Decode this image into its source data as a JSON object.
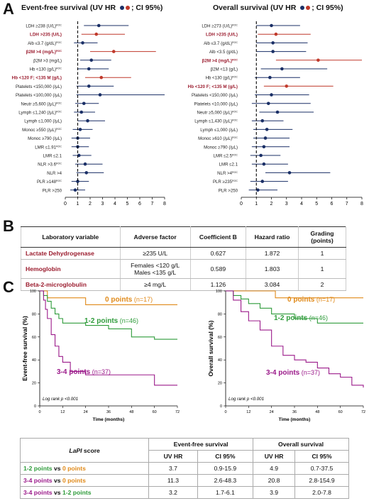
{
  "panels": {
    "a": "A",
    "b": "B",
    "c": "C"
  },
  "forest_left": {
    "title": "Event-free survival (UV HR ",
    "title_tail": "; CI 95%)",
    "axis_ticks": [
      "0",
      "1",
      "2",
      "3",
      "4",
      "5",
      "6",
      "7",
      "8"
    ]
  },
  "forest_right": {
    "title": "Overall survival (UV HR ",
    "title_tail": "; CI 95%)",
    "axis_ticks": [
      "0",
      "1",
      "2",
      "3",
      "4",
      "5",
      "6",
      "7",
      "8"
    ]
  },
  "chart_data": [
    {
      "type": "scatter",
      "subtype": "forest",
      "title": "Event-free survival (UV HR; CI 95%)",
      "xlim": [
        0,
        8
      ],
      "reference_line": 1,
      "rows": [
        {
          "label": "LDH ≥238 (U/L)ROC",
          "hr": 2.7,
          "lo": 1.5,
          "hi": 5.1,
          "highlight": false
        },
        {
          "label": "LDH >235 (U/L)",
          "hr": 2.5,
          "lo": 1.3,
          "hi": 4.8,
          "highlight": true
        },
        {
          "label": "Alb ≤3.7 (g/dL)ROC",
          "hr": 1.4,
          "lo": 0.7,
          "hi": 2.6,
          "highlight": false
        },
        {
          "label": "β2M >4 (mg/L)ROC",
          "hr": 3.9,
          "lo": 2.0,
          "hi": 7.3,
          "highlight": true
        },
        {
          "label": "β2M >3 (mg/L)",
          "hr": 2.1,
          "lo": 1.2,
          "hi": 3.7,
          "highlight": false
        },
        {
          "label": "Hb <130 (g/L)ROC",
          "hr": 1.9,
          "lo": 1.0,
          "hi": 3.5,
          "highlight": false
        },
        {
          "label": "Hb <120 F; <135 M (g/L)",
          "hr": 2.9,
          "lo": 1.6,
          "hi": 5.3,
          "highlight": true
        },
        {
          "label": "Platelets <150,000 (/μL)",
          "hr": 1.9,
          "lo": 0.9,
          "hi": 3.9,
          "highlight": false
        },
        {
          "label": "Platelets <100,000 (/μL)",
          "hr": 2.8,
          "lo": 0.9,
          "hi": 8.0,
          "highlight": false
        },
        {
          "label": "Neutr ≥5,600 (/μL)ROC",
          "hr": 1.5,
          "lo": 0.8,
          "hi": 2.7,
          "highlight": false
        },
        {
          "label": "Lymph ≤1,240 (/μL)ROC",
          "hr": 1.3,
          "lo": 0.7,
          "hi": 2.4,
          "highlight": false
        },
        {
          "label": "Lymph ≤1,000 (/μL)",
          "hr": 1.8,
          "lo": 1.0,
          "hi": 3.2,
          "highlight": false
        },
        {
          "label": "Monoc ≥550 (/μL)ROC",
          "hr": 1.2,
          "lo": 0.6,
          "hi": 2.2,
          "highlight": false
        },
        {
          "label": "Monoc ≥790 (/μL)",
          "hr": 1.0,
          "lo": 0.5,
          "hi": 2.0,
          "highlight": false
        },
        {
          "label": "LMR ≤1.91ROC",
          "hr": 1.0,
          "lo": 0.5,
          "hi": 1.9,
          "highlight": false
        },
        {
          "label": "LMR ≤2.1",
          "hr": 1.1,
          "lo": 0.6,
          "hi": 2.1,
          "highlight": false
        },
        {
          "label": "NLR >3.6ROC",
          "hr": 1.6,
          "lo": 0.8,
          "hi": 3.0,
          "highlight": false
        },
        {
          "label": "NLR >4",
          "hr": 1.7,
          "lo": 0.9,
          "hi": 3.1,
          "highlight": false
        },
        {
          "label": "PLR ≥148ROC",
          "hr": 1.0,
          "lo": 0.5,
          "hi": 1.9,
          "highlight": false
        },
        {
          "label": "PLR >250",
          "hr": 0.8,
          "lo": 0.4,
          "hi": 1.6,
          "highlight": false
        }
      ]
    },
    {
      "type": "scatter",
      "subtype": "forest",
      "title": "Overall survival (UV HR; CI 95%)",
      "xlim": [
        0,
        8
      ],
      "reference_line": 1,
      "rows": [
        {
          "label": "LDH ≥273 (U/L)ROC",
          "hr": 2.0,
          "lo": 1.0,
          "hi": 3.9,
          "highlight": false
        },
        {
          "label": "LDH >235 (U/L)",
          "hr": 2.3,
          "lo": 1.1,
          "hi": 4.6,
          "highlight": true
        },
        {
          "label": "Alb ≤3.7 (g/dL)ROC",
          "hr": 2.1,
          "lo": 1.0,
          "hi": 4.4,
          "highlight": false
        },
        {
          "label": "Alb <3.5 (g/dL)",
          "hr": 2.1,
          "lo": 1.0,
          "hi": 4.3,
          "highlight": false
        },
        {
          "label": "β2M >4 (mg/L)ROC",
          "hr": 5.1,
          "lo": 2.3,
          "hi": 8.0,
          "highlight": true
        },
        {
          "label": "β2M <13 (g/L)",
          "hr": 2.7,
          "lo": 1.3,
          "hi": 5.7,
          "highlight": false
        },
        {
          "label": "Hb <130 (g/L)ROC",
          "hr": 1.9,
          "lo": 0.9,
          "hi": 3.9,
          "highlight": false
        },
        {
          "label": "Hb <120 F; <135 M (g/L)",
          "hr": 3.0,
          "lo": 1.5,
          "hi": 6.1,
          "highlight": true
        },
        {
          "label": "Platelets <150,000 (/μL)",
          "hr": 2.0,
          "lo": 0.9,
          "hi": 4.5,
          "highlight": false
        },
        {
          "label": "Platelets <10,000 (/μL)",
          "hr": 1.8,
          "lo": 0.7,
          "hi": 4.6,
          "highlight": false
        },
        {
          "label": "Neutr ≥5,000 (/μL)ROC",
          "hr": 2.4,
          "lo": 1.2,
          "hi": 4.8,
          "highlight": false
        },
        {
          "label": "Lymph ≤1,430 (/μL)ROC",
          "hr": 1.4,
          "lo": 0.7,
          "hi": 2.8,
          "highlight": false
        },
        {
          "label": "Lymph ≤1,000 (/μL)",
          "hr": 1.7,
          "lo": 0.8,
          "hi": 3.4,
          "highlight": false
        },
        {
          "label": "Monoc ≥610 (/μL)ROC",
          "hr": 1.6,
          "lo": 0.8,
          "hi": 3.2,
          "highlight": false
        },
        {
          "label": "Monoc ≥790 (/μL)",
          "hr": 1.5,
          "lo": 0.7,
          "hi": 3.2,
          "highlight": false
        },
        {
          "label": "LMR ≤2.5ROC",
          "hr": 1.3,
          "lo": 0.6,
          "hi": 2.6,
          "highlight": false
        },
        {
          "label": "LMR ≤2.1",
          "hr": 1.5,
          "lo": 0.7,
          "hi": 3.1,
          "highlight": false
        },
        {
          "label": "NLR >4ROC",
          "hr": 3.2,
          "lo": 1.6,
          "hi": 5.9,
          "highlight": false
        },
        {
          "label": "PLR ≥235ROC",
          "hr": 1.4,
          "lo": 0.6,
          "hi": 3.1,
          "highlight": false
        },
        {
          "label": "PLR >250",
          "hr": 1.1,
          "lo": 0.5,
          "hi": 2.4,
          "highlight": false
        }
      ]
    },
    {
      "type": "line",
      "subtype": "kaplan-meier",
      "ylabel": "Event-free survival (%)",
      "xlabel": "Time (months)",
      "xlim": [
        0,
        72
      ],
      "ylim": [
        0,
        100
      ],
      "x_ticks": [
        "0",
        "12",
        "24",
        "36",
        "48",
        "60",
        "72"
      ],
      "y_ticks": [
        "0",
        "20",
        "40",
        "60",
        "80",
        "100"
      ],
      "annotation": "Log rank p <0.001",
      "series": [
        {
          "name": "0 points",
          "n_label": "(n=17)",
          "color": "#e08a1a",
          "x": [
            0,
            1,
            4,
            12,
            24,
            72
          ],
          "y": [
            100,
            100,
            94,
            94,
            88,
            88
          ]
        },
        {
          "name": "1-2 points",
          "n_label": "(n=46)",
          "color": "#2e9b3a",
          "x": [
            0,
            2,
            4,
            6,
            8,
            10,
            12,
            18,
            24,
            36,
            48,
            60,
            72
          ],
          "y": [
            100,
            96,
            91,
            85,
            80,
            76,
            72,
            72,
            70,
            67,
            60,
            58,
            58
          ]
        },
        {
          "name": "3-4 points",
          "n_label": "(n=37)",
          "color": "#9b1a8a",
          "x": [
            0,
            2,
            3,
            4,
            6,
            8,
            10,
            12,
            16,
            24,
            36,
            48,
            60,
            72
          ],
          "y": [
            100,
            92,
            84,
            76,
            62,
            52,
            43,
            38,
            30,
            27,
            27,
            27,
            18,
            18
          ]
        }
      ]
    },
    {
      "type": "line",
      "subtype": "kaplan-meier",
      "ylabel": "Overall survival (%)",
      "xlabel": "Time (months)",
      "xlim": [
        0,
        72
      ],
      "ylim": [
        0,
        100
      ],
      "x_ticks": [
        "0",
        "12",
        "24",
        "36",
        "48",
        "60",
        "72"
      ],
      "y_ticks": [
        "0",
        "20",
        "40",
        "60",
        "80",
        "100"
      ],
      "annotation": "Log rank p <0.001",
      "series": [
        {
          "name": "0 points",
          "n_label": "(n=17)",
          "color": "#e08a1a",
          "x": [
            0,
            24,
            26,
            72
          ],
          "y": [
            100,
            100,
            94,
            94
          ]
        },
        {
          "name": "1-2 points",
          "n_label": "(n=46)",
          "color": "#2e9b3a",
          "x": [
            0,
            4,
            8,
            12,
            18,
            24,
            36,
            48,
            60,
            72
          ],
          "y": [
            100,
            96,
            93,
            89,
            85,
            80,
            76,
            72,
            72,
            72
          ]
        },
        {
          "name": "3-4 points",
          "n_label": "(n=37)",
          "color": "#9b1a8a",
          "x": [
            0,
            4,
            8,
            12,
            18,
            24,
            30,
            36,
            42,
            48,
            54,
            60,
            66,
            72
          ],
          "y": [
            100,
            92,
            82,
            74,
            66,
            52,
            44,
            40,
            38,
            33,
            28,
            25,
            18,
            16
          ]
        }
      ]
    }
  ],
  "table_b": {
    "headers": [
      "Laboratory variable",
      "Adverse factor",
      "Coefficient B",
      "Hazard ratio",
      "Grading (points)"
    ],
    "rows": [
      {
        "var": "Lactate Dehydrogenase",
        "factor": "≥235 U/L",
        "factor2": "",
        "coef": "0.627",
        "hr": "1.872",
        "pts": "1"
      },
      {
        "var": "Hemoglobin",
        "factor": "Females <120 g/L",
        "factor2": "Males <135 g/L",
        "coef": "0.589",
        "hr": "1.803",
        "pts": "1"
      },
      {
        "var": "Beta-2-microglobulin",
        "factor": "≥4 mg/L",
        "factor2": "",
        "coef": "1.126",
        "hr": "3.084",
        "pts": "2"
      }
    ]
  },
  "table_d": {
    "score_label": "LaPI",
    "score_suffix": " score",
    "group_efs": "Event-free survival",
    "group_os": "Overall survival",
    "col_hr": "UV HR",
    "col_ci": "CI 95%",
    "vs": " vs ",
    "rows": [
      {
        "a": "1-2 points",
        "b": "0 points",
        "efs_hr": "3.7",
        "efs_ci": "0.9-15.9",
        "os_hr": "4.9",
        "os_ci": "0.7-37.5"
      },
      {
        "a": "3-4 points",
        "b": "0 points",
        "efs_hr": "11.3",
        "efs_ci": "2.6-48.3",
        "os_hr": "20.8",
        "os_ci": "2.8-154.9"
      },
      {
        "a": "3-4 points",
        "b": "1-2 points",
        "efs_hr": "3.2",
        "efs_ci": "1.7-6.1",
        "os_hr": "3.9",
        "os_ci": "2.0-7.8"
      }
    ]
  },
  "colors": {
    "navy": "#1a2f66",
    "red": "#c0392b",
    "orange": "#e08a1a",
    "green": "#2e9b3a",
    "magenta": "#9b1a8a"
  }
}
